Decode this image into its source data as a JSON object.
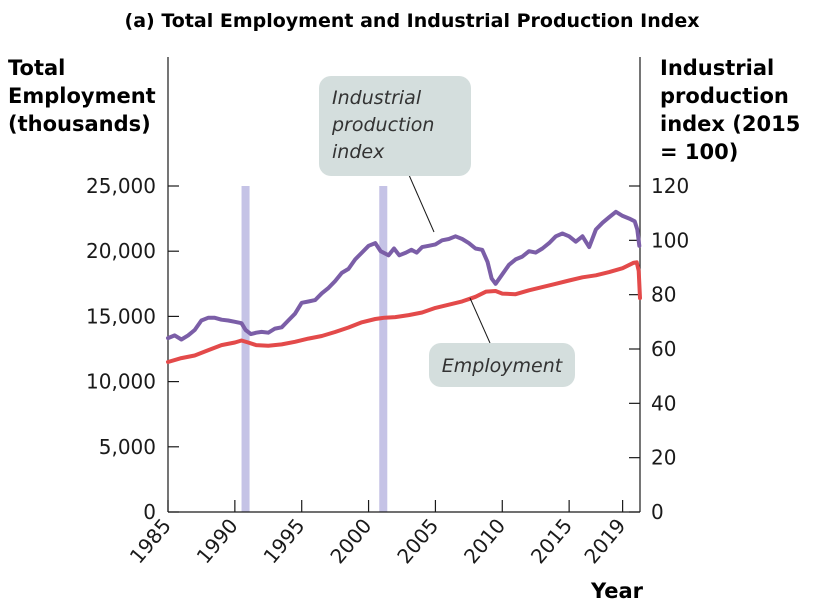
{
  "chart_data": {
    "type": "line",
    "title": "(a) Total Employment and Industrial Production Index",
    "left_axis": {
      "label_lines": [
        "Total",
        "Employment",
        "(thousands)"
      ],
      "ylim": [
        0,
        25000
      ],
      "ticks": [
        0,
        5000,
        10000,
        15000,
        20000,
        25000
      ],
      "tick_labels": [
        "0",
        "5,000",
        "10,000",
        "15,000",
        "20,000",
        "25,000"
      ]
    },
    "right_axis": {
      "label_lines": [
        "Industrial",
        "production",
        "index (2015",
        "= 100)"
      ],
      "ylim": [
        0,
        120
      ],
      "ticks": [
        0,
        20,
        40,
        60,
        80,
        100,
        120
      ],
      "tick_labels": [
        "0",
        "20",
        "40",
        "60",
        "80",
        "100",
        "120"
      ]
    },
    "x_axis": {
      "label": "Year",
      "xlim": [
        1985,
        2020.3
      ],
      "ticks": [
        1985,
        1990,
        1995,
        2000,
        2005,
        2010,
        2015,
        2019
      ],
      "tick_labels": [
        "1985",
        "1990",
        "1995",
        "2000",
        "2005",
        "2010",
        "2015",
        "2019"
      ]
    },
    "recessions": [
      [
        1990.5,
        1991.1
      ],
      [
        2000.8,
        2001.4
      ]
    ],
    "series": [
      {
        "name": "Industrial production index",
        "axis": "right",
        "color": "#7b5ea7",
        "x": [
          1985.0,
          1985.5,
          1986.0,
          1986.5,
          1987.0,
          1987.5,
          1988.0,
          1988.5,
          1989.0,
          1989.5,
          1990.0,
          1990.5,
          1990.8,
          1991.2,
          1991.6,
          1992.0,
          1992.5,
          1993.0,
          1993.5,
          1994.0,
          1994.5,
          1995.0,
          1995.5,
          1996.0,
          1996.5,
          1997.0,
          1997.5,
          1998.0,
          1998.5,
          1999.0,
          1999.5,
          2000.0,
          2000.5,
          2000.9,
          2001.5,
          2001.9,
          2002.3,
          2002.8,
          2003.2,
          2003.6,
          2004.0,
          2004.5,
          2005.0,
          2005.5,
          2006.0,
          2006.5,
          2007.0,
          2007.5,
          2008.0,
          2008.5,
          2008.9,
          2009.2,
          2009.5,
          2010.0,
          2010.5,
          2011.0,
          2011.5,
          2012.0,
          2012.5,
          2013.0,
          2013.5,
          2014.0,
          2014.5,
          2015.0,
          2015.5,
          2016.0,
          2016.5,
          2017.0,
          2017.5,
          2018.0,
          2018.5,
          2019.0,
          2019.5,
          2019.9,
          2020.1,
          2020.25
        ],
        "y": [
          64,
          65,
          63.5,
          65,
          67,
          70.5,
          71.5,
          71.5,
          70.8,
          70.5,
          70,
          69.5,
          67,
          65.5,
          66,
          66.3,
          66,
          67.5,
          68,
          70.5,
          73,
          77,
          77.5,
          78,
          80.5,
          82.5,
          85,
          88,
          89.5,
          93,
          95.5,
          98,
          99,
          96,
          94.5,
          97,
          94.5,
          95.5,
          96.5,
          95.5,
          97.5,
          98,
          98.5,
          100,
          100.5,
          101.5,
          100.5,
          99,
          97,
          96.5,
          92,
          86,
          84,
          87.5,
          91,
          93,
          94,
          96,
          95.5,
          97,
          99,
          101.5,
          102.5,
          101.5,
          99.5,
          101.5,
          97.5,
          104,
          106.5,
          108.5,
          110.5,
          109,
          108,
          107,
          104,
          98
        ]
      },
      {
        "name": "Employment",
        "axis": "left",
        "color": "#e34a4a",
        "x": [
          1985.0,
          1986.0,
          1987.0,
          1988.0,
          1989.0,
          1990.0,
          1990.5,
          1991.0,
          1991.6,
          1992.5,
          1993.5,
          1994.5,
          1995.5,
          1996.5,
          1997.5,
          1998.5,
          1999.5,
          2000.5,
          2001.2,
          2002.0,
          2003.0,
          2004.0,
          2005.0,
          2006.0,
          2007.0,
          2008.0,
          2008.8,
          2009.5,
          2010.0,
          2011.0,
          2012.0,
          2013.0,
          2014.0,
          2015.0,
          2016.0,
          2017.0,
          2018.0,
          2019.0,
          2019.8,
          2020.05,
          2020.2,
          2020.3
        ],
        "y": [
          11500,
          11800,
          12000,
          12400,
          12800,
          13000,
          13150,
          13000,
          12800,
          12750,
          12850,
          13050,
          13300,
          13500,
          13800,
          14150,
          14550,
          14800,
          14900,
          14950,
          15100,
          15300,
          15650,
          15900,
          16150,
          16500,
          16900,
          16950,
          16750,
          16700,
          17000,
          17250,
          17500,
          17750,
          18000,
          18150,
          18400,
          18700,
          19100,
          19150,
          18500,
          16400
        ]
      }
    ],
    "annotations": [
      {
        "text_lines": [
          "Industrial",
          "production",
          "index"
        ],
        "target": "Industrial production index"
      },
      {
        "text_lines": [
          "Employment"
        ],
        "target": "Employment"
      }
    ]
  }
}
